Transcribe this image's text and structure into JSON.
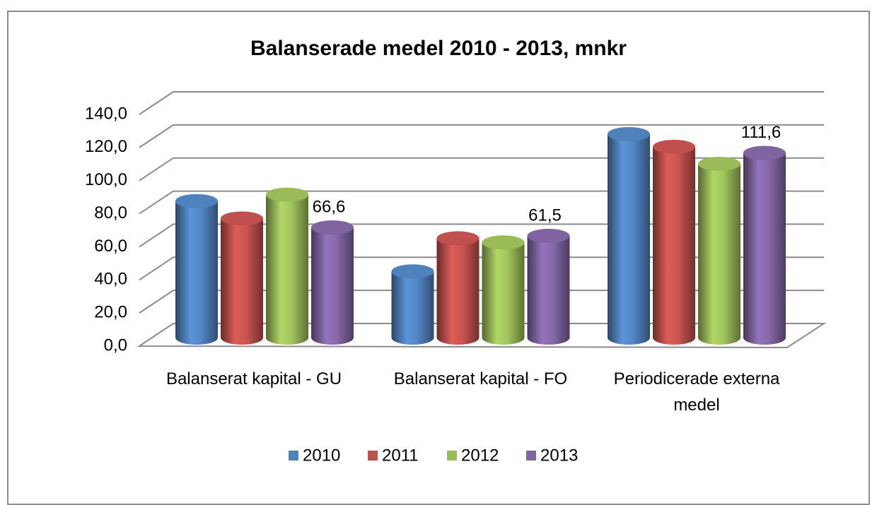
{
  "chart_data": {
    "type": "bar3d",
    "title": "Balanserade medel 2010 - 2013, mnkr",
    "categories": [
      "Balanserat kapital - GU",
      "Balanserat kapital - FO",
      "Periodicerade externa medel"
    ],
    "series": [
      {
        "name": "2010",
        "color": "#4f81bd",
        "values": [
          82.5,
          40,
          123
        ]
      },
      {
        "name": "2011",
        "color": "#c0504d",
        "values": [
          72,
          60,
          115.3
        ]
      },
      {
        "name": "2012",
        "color": "#9bbb59",
        "values": [
          86.4,
          57.5,
          105
        ]
      },
      {
        "name": "2013",
        "color": "#8064a2",
        "values": [
          66.6,
          61.5,
          111.6
        ],
        "value_labels": [
          "66,6",
          "61,5",
          "111,6"
        ]
      }
    ],
    "ylim": [
      0,
      140
    ],
    "yticks": [
      {
        "value": 0,
        "label": "0,0"
      },
      {
        "value": 20,
        "label": "20,0"
      },
      {
        "value": 40,
        "label": "40,0"
      },
      {
        "value": 60,
        "label": "60,0"
      },
      {
        "value": 80,
        "label": "80,0"
      },
      {
        "value": 100,
        "label": "100,0"
      },
      {
        "value": 120,
        "label": "120,0"
      },
      {
        "value": 140,
        "label": "140,0"
      }
    ],
    "grid": true,
    "legend": "bottom"
  }
}
